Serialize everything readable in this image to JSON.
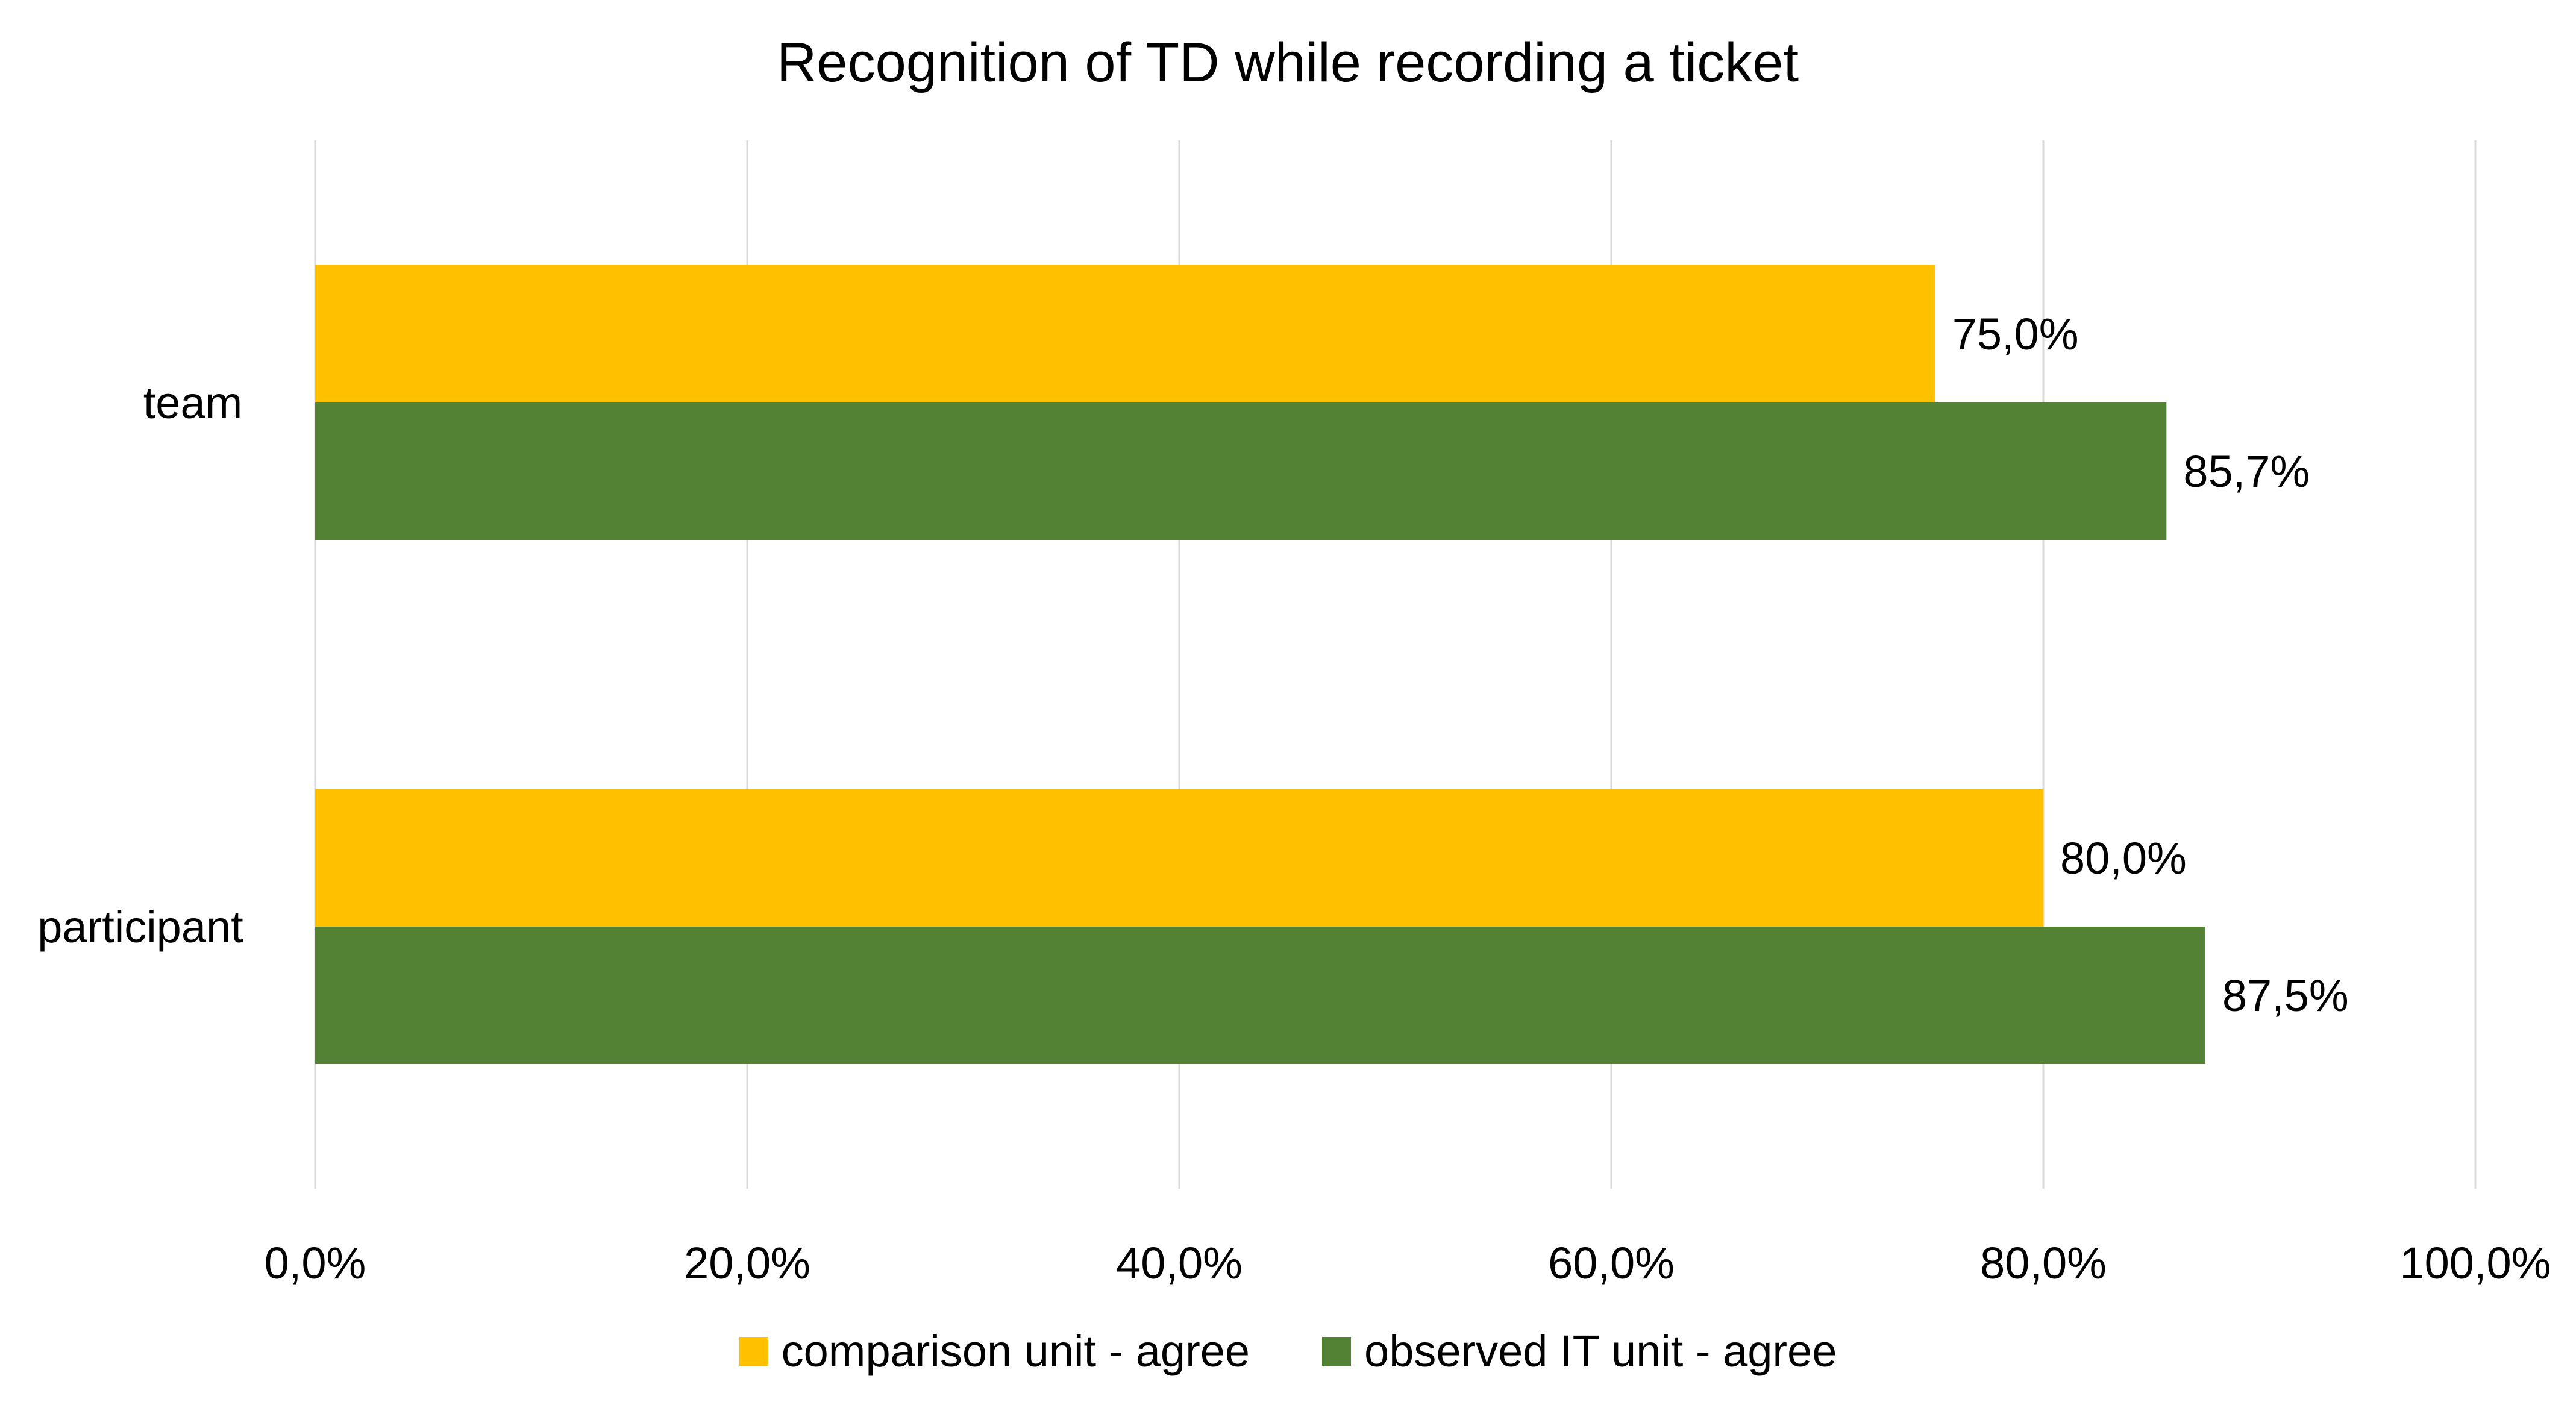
{
  "chart_data": {
    "type": "bar",
    "orientation": "horizontal",
    "title": "Recognition of TD while recording a ticket",
    "categories": [
      "team",
      "participant"
    ],
    "series": [
      {
        "name": "comparison unit - agree",
        "color": "#FFC000",
        "values": [
          75.0,
          80.0
        ],
        "labels": [
          "75,0%",
          "80,0%"
        ]
      },
      {
        "name": "observed IT unit - agree",
        "color": "#548235",
        "values": [
          85.7,
          87.5
        ],
        "labels": [
          "85,7%",
          "87,5%"
        ]
      }
    ],
    "xlim": [
      0,
      100
    ],
    "xticks": [
      0,
      20,
      40,
      60,
      80,
      100
    ],
    "xtick_labels": [
      "0,0%",
      "20,0%",
      "40,0%",
      "60,0%",
      "80,0%",
      "100,0%"
    ],
    "xlabel": "",
    "ylabel": "",
    "grid": true,
    "legend_position": "bottom"
  }
}
